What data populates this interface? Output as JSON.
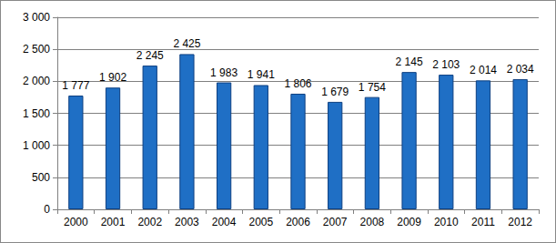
{
  "chart_data": {
    "type": "bar",
    "categories": [
      "2000",
      "2001",
      "2002",
      "2003",
      "2004",
      "2005",
      "2006",
      "2007",
      "2008",
      "2009",
      "2010",
      "2011",
      "2012"
    ],
    "values": [
      1777,
      1902,
      2245,
      2425,
      1983,
      1941,
      1806,
      1679,
      1754,
      2145,
      2103,
      2014,
      2034
    ],
    "value_labels": [
      "1 777",
      "1 902",
      "2 245",
      "2 425",
      "1 983",
      "1 941",
      "1 806",
      "1 679",
      "1 754",
      "2 145",
      "2 103",
      "2 014",
      "2 034"
    ],
    "color": "#1f6fc5",
    "ylim": [
      0,
      3000
    ],
    "yticks": [
      0,
      500,
      {
        "value": 1000,
        "label": "1 000"
      },
      {
        "value": 1500,
        "label": "1 500"
      },
      {
        "value": 2000,
        "label": "2 000"
      },
      {
        "value": 2500,
        "label": "2 500"
      },
      {
        "value": 3000,
        "label": "3 000"
      }
    ],
    "grid": true,
    "data_labels": true
  }
}
